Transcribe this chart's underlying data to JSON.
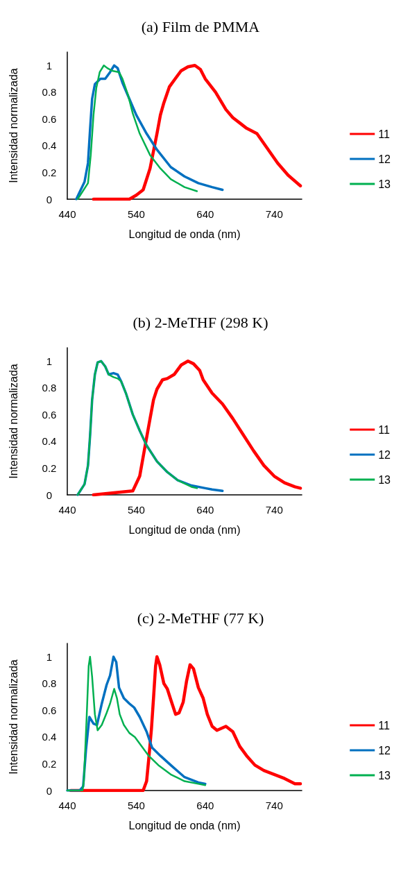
{
  "chart_data": [
    {
      "type": "line",
      "title": "(a) Film de PMMA",
      "xlabel": "Longitud de onda (nm)",
      "ylabel": "Intensidad normalizada",
      "xlim": [
        440,
        780
      ],
      "xticks": [
        440,
        540,
        640,
        740
      ],
      "ylim": [
        0,
        1.1
      ],
      "yticks": [
        0,
        0.2,
        0.4,
        0.6,
        0.8,
        1
      ],
      "grid": false,
      "legend": "right",
      "marker": "none",
      "line_style": "solid",
      "series": [
        {
          "name": "11",
          "color": "#ff0000",
          "x": [
            478,
            530,
            540,
            550,
            560,
            570,
            575,
            580,
            588,
            595,
            605,
            615,
            625,
            633,
            640,
            655,
            670,
            680,
            690,
            700,
            715,
            730,
            745,
            760,
            778
          ],
          "values": [
            0,
            0,
            0.03,
            0.07,
            0.23,
            0.49,
            0.63,
            0.72,
            0.84,
            0.89,
            0.96,
            0.99,
            1.0,
            0.97,
            0.9,
            0.8,
            0.67,
            0.61,
            0.57,
            0.53,
            0.49,
            0.38,
            0.27,
            0.18,
            0.1
          ]
        },
        {
          "name": "12",
          "color": "#0070c0",
          "x": [
            453,
            465,
            470,
            473,
            476,
            480,
            488,
            495,
            502,
            508,
            513,
            520,
            530,
            540,
            555,
            570,
            590,
            610,
            630,
            650,
            665
          ],
          "values": [
            0,
            0.13,
            0.27,
            0.52,
            0.75,
            0.86,
            0.9,
            0.9,
            0.95,
            1.0,
            0.98,
            0.87,
            0.75,
            0.63,
            0.49,
            0.37,
            0.24,
            0.17,
            0.12,
            0.09,
            0.07
          ]
        },
        {
          "name": "13",
          "color": "#00b050",
          "x": [
            455,
            470,
            474,
            478,
            482,
            487,
            493,
            498,
            505,
            515,
            520,
            528,
            535,
            545,
            560,
            575,
            590,
            610,
            628
          ],
          "values": [
            0,
            0.12,
            0.33,
            0.63,
            0.83,
            0.95,
            1.0,
            0.98,
            0.96,
            0.95,
            0.9,
            0.78,
            0.64,
            0.49,
            0.33,
            0.23,
            0.15,
            0.09,
            0.06
          ]
        }
      ]
    },
    {
      "type": "line",
      "title": "(b) 2-MeTHF (298 K)",
      "xlabel": "Longitud de onda (nm)",
      "ylabel": "Intensidad normalizada",
      "xlim": [
        440,
        780
      ],
      "xticks": [
        440,
        540,
        640,
        740
      ],
      "ylim": [
        0,
        1.1
      ],
      "yticks": [
        0,
        0.2,
        0.4,
        0.6,
        0.8,
        1
      ],
      "grid": false,
      "legend": "right",
      "marker": "none",
      "line_style": "solid",
      "series": [
        {
          "name": "11",
          "color": "#ff0000",
          "x": [
            478,
            535,
            545,
            553,
            560,
            565,
            570,
            578,
            585,
            595,
            605,
            615,
            623,
            632,
            637,
            650,
            665,
            680,
            695,
            710,
            725,
            740,
            755,
            770,
            778
          ],
          "values": [
            0,
            0.03,
            0.14,
            0.37,
            0.57,
            0.71,
            0.79,
            0.86,
            0.87,
            0.9,
            0.97,
            1.0,
            0.98,
            0.93,
            0.86,
            0.76,
            0.68,
            0.57,
            0.45,
            0.33,
            0.22,
            0.14,
            0.09,
            0.06,
            0.05
          ]
        },
        {
          "name": "12",
          "color": "#0070c0",
          "x": [
            455,
            465,
            470,
            473,
            476,
            480,
            484,
            489,
            495,
            500,
            507,
            513,
            518,
            525,
            535,
            545,
            555,
            570,
            585,
            600,
            620,
            640,
            650,
            665
          ],
          "values": [
            0,
            0.08,
            0.22,
            0.44,
            0.71,
            0.9,
            0.99,
            1.0,
            0.96,
            0.9,
            0.91,
            0.9,
            0.85,
            0.76,
            0.6,
            0.48,
            0.37,
            0.25,
            0.17,
            0.11,
            0.07,
            0.05,
            0.04,
            0.03
          ]
        },
        {
          "name": "13",
          "color": "#00b050",
          "x": [
            455,
            465,
            470,
            473,
            476,
            480,
            484,
            489,
            495,
            500,
            507,
            513,
            518,
            525,
            535,
            545,
            555,
            570,
            585,
            600,
            620,
            628
          ],
          "values": [
            0,
            0.08,
            0.22,
            0.44,
            0.71,
            0.9,
            0.99,
            1.0,
            0.96,
            0.9,
            0.88,
            0.87,
            0.85,
            0.76,
            0.6,
            0.48,
            0.37,
            0.25,
            0.17,
            0.11,
            0.06,
            0.05
          ]
        }
      ]
    },
    {
      "type": "line",
      "title": "(c) 2-MeTHF (77 K)",
      "xlabel": "Longitud de onda (nm)",
      "ylabel": "Intensidad normalizada",
      "xlim": [
        440,
        780
      ],
      "xticks": [
        440,
        540,
        640,
        740
      ],
      "ylim": [
        0,
        1.1
      ],
      "yticks": [
        0,
        0.2,
        0.4,
        0.6,
        0.8,
        1
      ],
      "grid": false,
      "legend": "right",
      "marker": "none",
      "line_style": "solid",
      "series": [
        {
          "name": "11",
          "color": "#ff0000",
          "x": [
            445,
            550,
            555,
            558,
            562,
            565,
            568,
            570,
            574,
            580,
            585,
            590,
            597,
            602,
            608,
            613,
            618,
            623,
            630,
            637,
            643,
            650,
            657,
            670,
            680,
            690,
            700,
            712,
            725,
            740,
            755,
            770,
            778
          ],
          "values": [
            0,
            0,
            0.07,
            0.23,
            0.46,
            0.69,
            0.93,
            1.0,
            0.94,
            0.8,
            0.76,
            0.68,
            0.57,
            0.58,
            0.66,
            0.82,
            0.94,
            0.91,
            0.77,
            0.69,
            0.57,
            0.48,
            0.45,
            0.48,
            0.44,
            0.33,
            0.26,
            0.19,
            0.15,
            0.12,
            0.09,
            0.05,
            0.05
          ]
        },
        {
          "name": "12",
          "color": "#0070c0",
          "x": [
            440,
            458,
            463,
            467,
            472,
            478,
            483,
            490,
            497,
            502,
            507,
            511,
            515,
            522,
            530,
            537,
            545,
            555,
            563,
            575,
            590,
            610,
            630,
            640
          ],
          "values": [
            0,
            0,
            0.03,
            0.3,
            0.55,
            0.5,
            0.49,
            0.65,
            0.79,
            0.86,
            1.0,
            0.96,
            0.77,
            0.69,
            0.65,
            0.62,
            0.55,
            0.44,
            0.32,
            0.26,
            0.19,
            0.1,
            0.06,
            0.05
          ]
        },
        {
          "name": "13",
          "color": "#00b050",
          "x": [
            440,
            462,
            464,
            468,
            471,
            473,
            476,
            480,
            484,
            490,
            497,
            502,
            508,
            512,
            516,
            522,
            530,
            538,
            548,
            558,
            572,
            590,
            610,
            630,
            640
          ],
          "values": [
            0,
            0,
            0.07,
            0.54,
            0.93,
            1.0,
            0.85,
            0.57,
            0.45,
            0.49,
            0.58,
            0.65,
            0.76,
            0.69,
            0.57,
            0.49,
            0.43,
            0.4,
            0.33,
            0.26,
            0.19,
            0.12,
            0.07,
            0.05,
            0.04
          ]
        }
      ]
    }
  ]
}
